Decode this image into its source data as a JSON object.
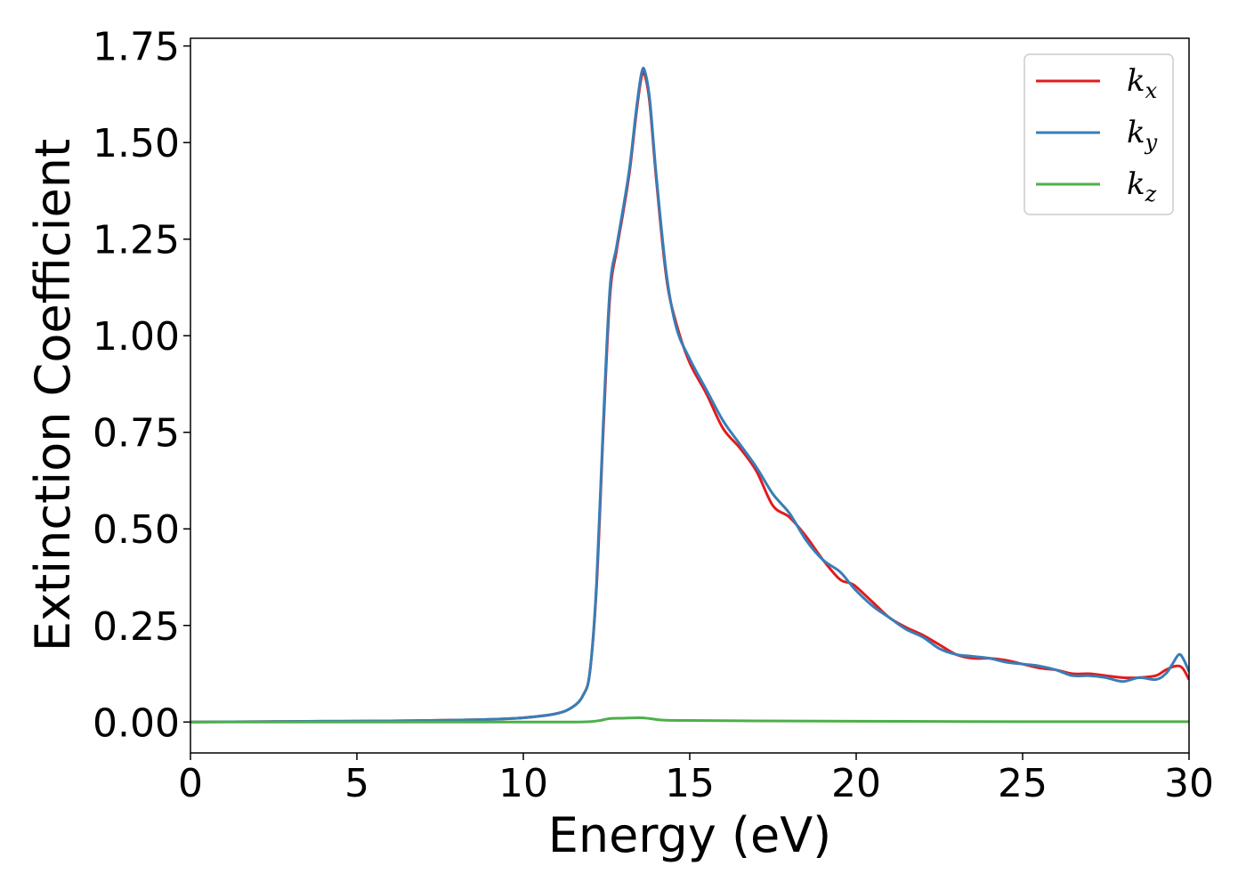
{
  "chart_data": {
    "type": "line",
    "xlabel": "Energy (eV)",
    "ylabel": "Extinction Coefficient",
    "xlim": [
      0,
      30
    ],
    "ylim": [
      -0.08,
      1.77
    ],
    "xticks": [
      0,
      5,
      10,
      15,
      20,
      25,
      30
    ],
    "xtick_labels": [
      "0",
      "5",
      "10",
      "15",
      "20",
      "25",
      "30"
    ],
    "yticks": [
      0.0,
      0.25,
      0.5,
      0.75,
      1.0,
      1.25,
      1.5,
      1.75
    ],
    "ytick_labels": [
      "0.00",
      "0.25",
      "0.50",
      "0.75",
      "1.00",
      "1.25",
      "1.50",
      "1.75"
    ],
    "grid": false,
    "legend": {
      "placement": "top-right"
    },
    "series": [
      {
        "name": "k",
        "subscript": "x",
        "color": "#e41a1c",
        "points": [
          [
            0,
            0.0
          ],
          [
            2,
            0.001
          ],
          [
            4,
            0.002
          ],
          [
            6,
            0.003
          ],
          [
            8,
            0.005
          ],
          [
            9,
            0.007
          ],
          [
            10,
            0.011
          ],
          [
            11,
            0.022
          ],
          [
            11.5,
            0.04
          ],
          [
            11.8,
            0.07
          ],
          [
            12.0,
            0.13
          ],
          [
            12.2,
            0.35
          ],
          [
            12.4,
            0.75
          ],
          [
            12.6,
            1.1
          ],
          [
            12.8,
            1.22
          ],
          [
            13.0,
            1.32
          ],
          [
            13.2,
            1.43
          ],
          [
            13.4,
            1.58
          ],
          [
            13.55,
            1.67
          ],
          [
            13.65,
            1.675
          ],
          [
            13.8,
            1.6
          ],
          [
            14.0,
            1.4
          ],
          [
            14.3,
            1.15
          ],
          [
            14.6,
            1.03
          ],
          [
            15.0,
            0.93
          ],
          [
            15.5,
            0.85
          ],
          [
            16.0,
            0.76
          ],
          [
            16.5,
            0.71
          ],
          [
            17.0,
            0.65
          ],
          [
            17.5,
            0.56
          ],
          [
            18.0,
            0.53
          ],
          [
            18.5,
            0.48
          ],
          [
            19.0,
            0.42
          ],
          [
            19.5,
            0.37
          ],
          [
            19.8,
            0.36
          ],
          [
            20.0,
            0.35
          ],
          [
            20.5,
            0.31
          ],
          [
            21.0,
            0.27
          ],
          [
            21.5,
            0.245
          ],
          [
            22.0,
            0.225
          ],
          [
            22.5,
            0.2
          ],
          [
            23.0,
            0.175
          ],
          [
            23.5,
            0.165
          ],
          [
            24.0,
            0.165
          ],
          [
            24.5,
            0.16
          ],
          [
            25.0,
            0.15
          ],
          [
            25.5,
            0.14
          ],
          [
            26.0,
            0.135
          ],
          [
            26.5,
            0.125
          ],
          [
            27.0,
            0.125
          ],
          [
            27.5,
            0.12
          ],
          [
            28.0,
            0.115
          ],
          [
            28.5,
            0.115
          ],
          [
            29.0,
            0.12
          ],
          [
            29.3,
            0.135
          ],
          [
            29.6,
            0.145
          ],
          [
            29.8,
            0.14
          ],
          [
            30.0,
            0.11
          ]
        ]
      },
      {
        "name": "k",
        "subscript": "y",
        "color": "#377eb8",
        "points": [
          [
            0,
            0.0
          ],
          [
            2,
            0.001
          ],
          [
            4,
            0.002
          ],
          [
            6,
            0.003
          ],
          [
            8,
            0.005
          ],
          [
            9,
            0.007
          ],
          [
            10,
            0.011
          ],
          [
            11,
            0.022
          ],
          [
            11.5,
            0.04
          ],
          [
            11.8,
            0.07
          ],
          [
            12.0,
            0.13
          ],
          [
            12.2,
            0.36
          ],
          [
            12.4,
            0.77
          ],
          [
            12.6,
            1.12
          ],
          [
            12.8,
            1.23
          ],
          [
            13.0,
            1.33
          ],
          [
            13.2,
            1.44
          ],
          [
            13.4,
            1.59
          ],
          [
            13.55,
            1.68
          ],
          [
            13.65,
            1.685
          ],
          [
            13.8,
            1.61
          ],
          [
            14.0,
            1.41
          ],
          [
            14.3,
            1.16
          ],
          [
            14.6,
            1.02
          ],
          [
            15.0,
            0.94
          ],
          [
            15.5,
            0.86
          ],
          [
            16.0,
            0.78
          ],
          [
            16.5,
            0.72
          ],
          [
            17.0,
            0.66
          ],
          [
            17.5,
            0.59
          ],
          [
            18.0,
            0.54
          ],
          [
            18.5,
            0.47
          ],
          [
            19.0,
            0.42
          ],
          [
            19.5,
            0.39
          ],
          [
            19.8,
            0.36
          ],
          [
            20.0,
            0.34
          ],
          [
            20.5,
            0.3
          ],
          [
            21.0,
            0.27
          ],
          [
            21.5,
            0.24
          ],
          [
            22.0,
            0.22
          ],
          [
            22.5,
            0.19
          ],
          [
            23.0,
            0.175
          ],
          [
            23.5,
            0.17
          ],
          [
            24.0,
            0.165
          ],
          [
            24.5,
            0.155
          ],
          [
            25.0,
            0.15
          ],
          [
            25.5,
            0.145
          ],
          [
            26.0,
            0.135
          ],
          [
            26.5,
            0.12
          ],
          [
            27.0,
            0.12
          ],
          [
            27.5,
            0.115
          ],
          [
            28.0,
            0.105
          ],
          [
            28.5,
            0.115
          ],
          [
            29.0,
            0.11
          ],
          [
            29.3,
            0.125
          ],
          [
            29.5,
            0.15
          ],
          [
            29.7,
            0.175
          ],
          [
            29.85,
            0.16
          ],
          [
            30.0,
            0.13
          ]
        ]
      },
      {
        "name": "k",
        "subscript": "z",
        "color": "#4daf4a",
        "points": [
          [
            0,
            0.0
          ],
          [
            5,
            0.0
          ],
          [
            10,
            0.0
          ],
          [
            11.5,
            0.0
          ],
          [
            12.0,
            0.001
          ],
          [
            12.3,
            0.004
          ],
          [
            12.6,
            0.009
          ],
          [
            13.0,
            0.01
          ],
          [
            13.5,
            0.011
          ],
          [
            13.8,
            0.009
          ],
          [
            14.2,
            0.005
          ],
          [
            15,
            0.004
          ],
          [
            17,
            0.003
          ],
          [
            20,
            0.002
          ],
          [
            25,
            0.001
          ],
          [
            30,
            0.001
          ]
        ]
      }
    ]
  }
}
